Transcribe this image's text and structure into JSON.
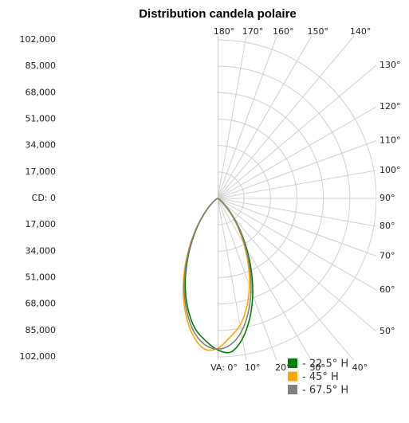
{
  "chart_data": {
    "type": "polar",
    "title": "Distribution candela polaire",
    "rlim": [
      0,
      102000
    ],
    "rticks": [
      {
        "value": 0,
        "label": "CD: 0"
      },
      {
        "value": 17000,
        "label": "17,000"
      },
      {
        "value": 34000,
        "label": "34,000"
      },
      {
        "value": 51000,
        "label": "51,000"
      },
      {
        "value": 68000,
        "label": "68,000"
      },
      {
        "value": 85000,
        "label": "85,000"
      },
      {
        "value": 102000,
        "label": "102,000"
      }
    ],
    "angle_ticks": [
      {
        "value": 0,
        "label": "VA: 0°"
      },
      {
        "value": 10,
        "label": "10°"
      },
      {
        "value": 20,
        "label": "20°"
      },
      {
        "value": 30,
        "label": "30°"
      },
      {
        "value": 40,
        "label": "40°"
      },
      {
        "value": 50,
        "label": "50°"
      },
      {
        "value": 60,
        "label": "60°"
      },
      {
        "value": 70,
        "label": "70°"
      },
      {
        "value": 80,
        "label": "80°"
      },
      {
        "value": 90,
        "label": "90°"
      },
      {
        "value": 100,
        "label": "100°"
      },
      {
        "value": 110,
        "label": "110°"
      },
      {
        "value": 120,
        "label": "120°"
      },
      {
        "value": 130,
        "label": "130°"
      },
      {
        "value": 140,
        "label": "140°"
      },
      {
        "value": 150,
        "label": "150°"
      },
      {
        "value": 160,
        "label": "160°"
      },
      {
        "value": 170,
        "label": "170°"
      },
      {
        "value": 180,
        "label": "180°"
      }
    ],
    "grid": true,
    "x": [
      -90,
      -70,
      -60,
      -55,
      -50,
      -45,
      -40,
      -35,
      -30,
      -25,
      -20,
      -15,
      -10,
      -5,
      0,
      5,
      10,
      15,
      20,
      25,
      30,
      35,
      40,
      45,
      50,
      55,
      60,
      70,
      90
    ],
    "series": [
      {
        "name": "- 22.5° H",
        "color": "#008000",
        "values": [
          0,
          150,
          740,
          1900,
          4300,
          8300,
          14600,
          23400,
          34300,
          47200,
          60900,
          73700,
          84700,
          91700,
          97500,
          99200,
          91700,
          79800,
          65900,
          51100,
          37200,
          25300,
          15800,
          9000,
          4600,
          2100,
          800,
          160,
          0
        ]
      },
      {
        "name": "- 45° H",
        "color": "#ffa500",
        "values": [
          0,
          150,
          780,
          2100,
          4500,
          8900,
          15500,
          24800,
          36500,
          50200,
          64700,
          78300,
          89900,
          97300,
          96500,
          89800,
          82900,
          72200,
          59700,
          46300,
          33600,
          22900,
          14300,
          8200,
          4200,
          1900,
          720,
          140,
          0
        ]
      },
      {
        "name": "- 67.5° H",
        "color": "#808080",
        "values": [
          0,
          150,
          760,
          2000,
          4400,
          8600,
          15000,
          24100,
          35400,
          48700,
          62800,
          76000,
          87300,
          94500,
          97000,
          94500,
          87300,
          76000,
          62800,
          48700,
          35400,
          24100,
          15000,
          8600,
          4400,
          2000,
          760,
          150,
          0
        ]
      }
    ]
  }
}
